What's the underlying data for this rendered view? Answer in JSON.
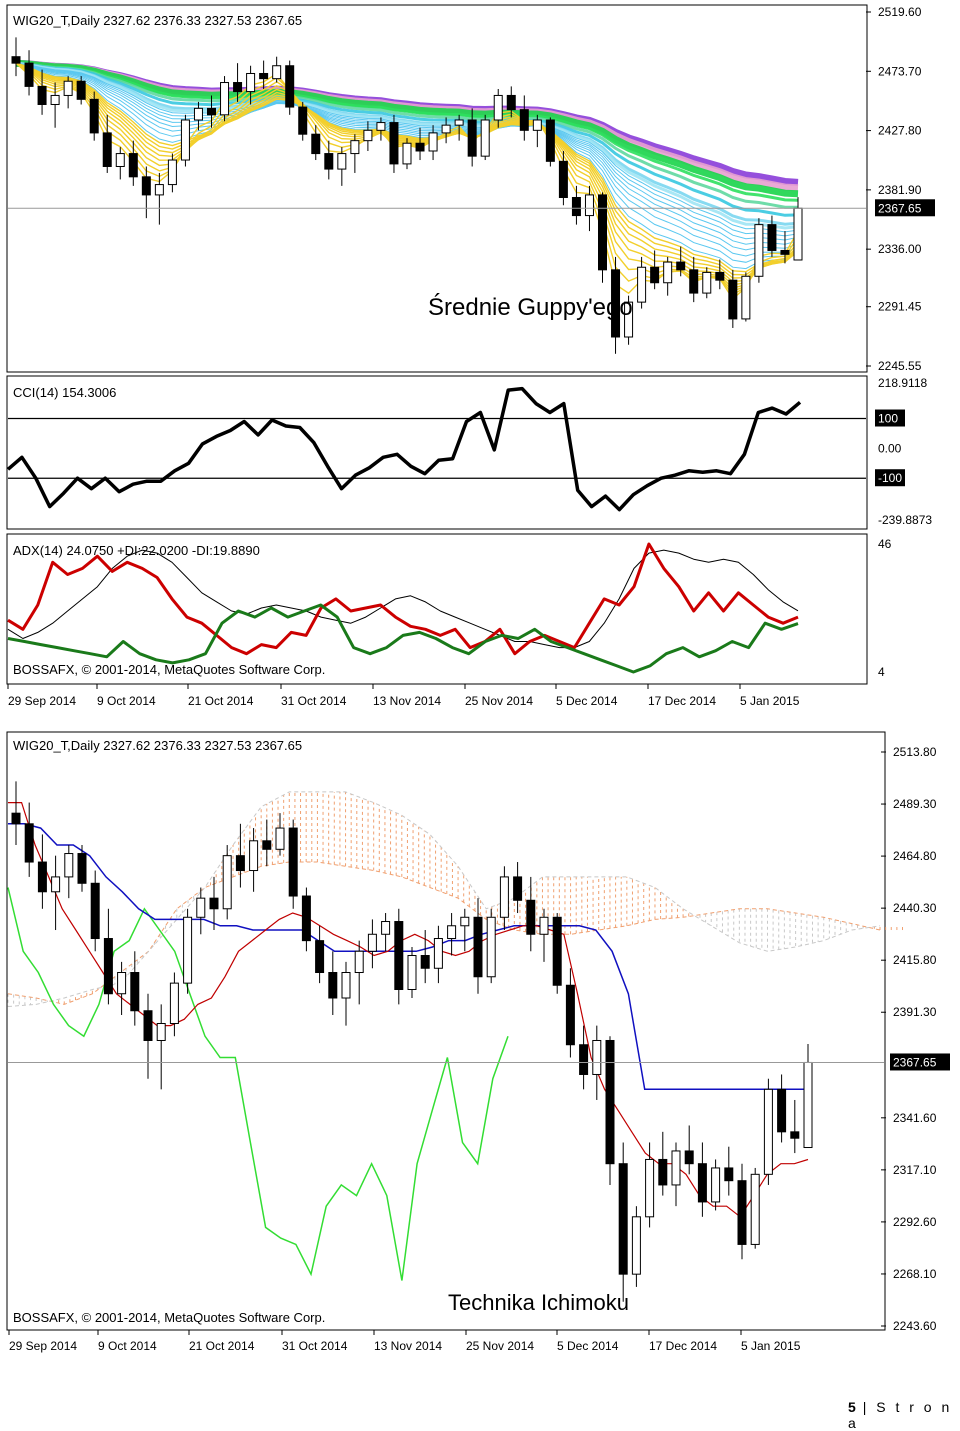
{
  "footer": {
    "page": "5",
    "sep": "|",
    "word": "S t r o n a"
  },
  "chart_data": [
    {
      "type": "candlestick",
      "panel": "guppy",
      "header": "WIG20_T,Daily  2327.62 2376.33 2327.53 2367.65",
      "annotation": "Średnie Guppy'ego",
      "ylim": [
        2245.55,
        2519.6
      ],
      "yticks": [
        "2519.60",
        "2473.70",
        "2427.80",
        "2381.90",
        "2336.00",
        "2291.45",
        "2245.55"
      ],
      "last_price": "2367.65",
      "ohlc": [
        [
          2485,
          2500,
          2470,
          2480
        ],
        [
          2480,
          2490,
          2455,
          2462
        ],
        [
          2462,
          2475,
          2440,
          2448
        ],
        [
          2448,
          2465,
          2430,
          2455
        ],
        [
          2455,
          2470,
          2445,
          2466
        ],
        [
          2466,
          2470,
          2448,
          2452
        ],
        [
          2452,
          2458,
          2420,
          2426
        ],
        [
          2426,
          2440,
          2395,
          2400
        ],
        [
          2400,
          2415,
          2390,
          2410
        ],
        [
          2410,
          2420,
          2385,
          2392
        ],
        [
          2392,
          2400,
          2360,
          2378
        ],
        [
          2378,
          2395,
          2355,
          2386
        ],
        [
          2386,
          2410,
          2380,
          2405
        ],
        [
          2405,
          2440,
          2400,
          2436
        ],
        [
          2436,
          2450,
          2428,
          2445
        ],
        [
          2445,
          2455,
          2430,
          2440
        ],
        [
          2440,
          2470,
          2435,
          2465
        ],
        [
          2465,
          2480,
          2450,
          2458
        ],
        [
          2458,
          2478,
          2448,
          2472
        ],
        [
          2472,
          2482,
          2460,
          2468
        ],
        [
          2468,
          2485,
          2465,
          2478
        ],
        [
          2478,
          2482,
          2440,
          2446
        ],
        [
          2446,
          2450,
          2420,
          2425
        ],
        [
          2425,
          2432,
          2405,
          2410
        ],
        [
          2410,
          2420,
          2390,
          2398
        ],
        [
          2398,
          2415,
          2385,
          2410
        ],
        [
          2410,
          2425,
          2395,
          2420
        ],
        [
          2420,
          2435,
          2412,
          2428
        ],
        [
          2428,
          2438,
          2420,
          2434
        ],
        [
          2434,
          2440,
          2395,
          2402
        ],
        [
          2402,
          2422,
          2398,
          2418
        ],
        [
          2418,
          2430,
          2405,
          2412
        ],
        [
          2412,
          2432,
          2405,
          2426
        ],
        [
          2426,
          2438,
          2418,
          2432
        ],
        [
          2432,
          2440,
          2420,
          2436
        ],
        [
          2436,
          2445,
          2400,
          2408
        ],
        [
          2408,
          2440,
          2405,
          2436
        ],
        [
          2436,
          2460,
          2430,
          2455
        ],
        [
          2455,
          2462,
          2438,
          2444
        ],
        [
          2444,
          2455,
          2420,
          2428
        ],
        [
          2428,
          2440,
          2415,
          2436
        ],
        [
          2436,
          2438,
          2400,
          2404
        ],
        [
          2404,
          2412,
          2370,
          2376
        ],
        [
          2376,
          2385,
          2355,
          2362
        ],
        [
          2362,
          2385,
          2350,
          2378
        ],
        [
          2378,
          2380,
          2310,
          2320
        ],
        [
          2320,
          2330,
          2255,
          2268
        ],
        [
          2268,
          2300,
          2262,
          2295
        ],
        [
          2295,
          2330,
          2290,
          2322
        ],
        [
          2322,
          2335,
          2305,
          2310
        ],
        [
          2310,
          2330,
          2300,
          2326
        ],
        [
          2326,
          2338,
          2315,
          2320
        ],
        [
          2320,
          2330,
          2295,
          2302
        ],
        [
          2302,
          2322,
          2298,
          2318
        ],
        [
          2318,
          2328,
          2305,
          2312
        ],
        [
          2312,
          2320,
          2275,
          2282
        ],
        [
          2282,
          2318,
          2280,
          2315
        ],
        [
          2315,
          2360,
          2310,
          2355
        ],
        [
          2355,
          2362,
          2330,
          2335
        ],
        [
          2335,
          2350,
          2325,
          2332
        ],
        [
          2327.62,
          2376.33,
          2327.53,
          2367.65
        ]
      ]
    },
    {
      "type": "line",
      "panel": "cci",
      "header": "CCI(14) 154.3006",
      "ylim": [
        -239.8873,
        218.9118
      ],
      "yticks": [
        "218.9118",
        "100",
        "0.00",
        "-100",
        "-239.8873"
      ],
      "levels": [
        100,
        -100
      ],
      "values": [
        -70,
        -30,
        -100,
        -195,
        -150,
        -100,
        -135,
        -100,
        -145,
        -120,
        -110,
        -110,
        -75,
        -50,
        15,
        40,
        60,
        90,
        45,
        95,
        75,
        70,
        20,
        -60,
        -135,
        -90,
        -65,
        -30,
        -20,
        -60,
        -85,
        -40,
        -35,
        90,
        120,
        -5,
        195,
        200,
        150,
        120,
        150,
        -140,
        -195,
        -160,
        -205,
        -155,
        -125,
        -100,
        -90,
        -75,
        -80,
        -75,
        -85,
        -20,
        120,
        135,
        115,
        154.3006
      ]
    },
    {
      "type": "line",
      "panel": "adx",
      "header": "ADX(14) 24.0750 +DI:22.0200 -DI:19.8890",
      "watermark": "BOSSAFX, © 2001-2014, MetaQuotes Software Corp.",
      "ylim": [
        4,
        46
      ],
      "yticks": [
        "46",
        "4"
      ],
      "series": [
        {
          "name": "ADX",
          "color": "#000000",
          "values": [
            18,
            15,
            17,
            20,
            24,
            28,
            32,
            38,
            42,
            44,
            43,
            40,
            35,
            30,
            27,
            24,
            23,
            25,
            26,
            25,
            24,
            22,
            21,
            20,
            22,
            25,
            28,
            29,
            27,
            24,
            22,
            20,
            18,
            16,
            14,
            14,
            13,
            12,
            12,
            14,
            20,
            28,
            38,
            43,
            44,
            43,
            41,
            40,
            41,
            40,
            36,
            31,
            27,
            24.075
          ]
        },
        {
          "name": "+DI",
          "color": "#cc0000",
          "values": [
            21,
            18,
            26,
            40,
            36,
            38,
            42,
            37,
            40,
            38,
            35,
            28,
            22,
            20,
            16,
            12,
            10,
            13,
            12,
            17,
            16,
            25,
            28,
            24,
            25,
            26,
            22,
            19,
            18,
            16,
            18,
            12,
            14,
            18,
            10,
            14,
            16,
            14,
            12,
            20,
            28,
            26,
            32,
            46,
            38,
            32,
            24,
            30,
            24,
            30,
            26,
            22,
            20,
            22.02
          ]
        },
        {
          "name": "-DI",
          "color": "#1a7a1a",
          "values": [
            15,
            14,
            13,
            12,
            11,
            10,
            9,
            14,
            10,
            8,
            7,
            8,
            10,
            20,
            24,
            22,
            25,
            22,
            24,
            26,
            22,
            12,
            10,
            12,
            16,
            17,
            15,
            12,
            10,
            14,
            16,
            15,
            18,
            14,
            12,
            10,
            8,
            6,
            4,
            6,
            10,
            12,
            9,
            11,
            14,
            12,
            20,
            18,
            19.889
          ]
        }
      ]
    },
    {
      "type": "candlestick",
      "panel": "ichimoku",
      "header": "WIG20_T,Daily  2327.62 2376.33 2327.53 2367.65",
      "annotation": "Technika Ichimoku",
      "watermark": "BOSSAFX, © 2001-2014, MetaQuotes Software Corp.",
      "ylim": [
        2243.6,
        2513.8
      ],
      "yticks": [
        "2513.80",
        "2489.30",
        "2464.80",
        "2440.30",
        "2415.80",
        "2391.30",
        "2367.65",
        "2341.60",
        "2317.10",
        "2292.60",
        "2268.10",
        "2243.60"
      ],
      "last_price": "2367.65",
      "xticks": [
        "29 Sep 2014",
        "9 Oct 2014",
        "21 Oct 2014",
        "31 Oct 2014",
        "13 Nov 2014",
        "25 Nov 2014",
        "5 Dec 2014",
        "17 Dec 2014",
        "5 Jan 2015"
      ],
      "lines": {
        "tenkan": [
          2490,
          2490,
          2470,
          2455,
          2440,
          2430,
          2420,
          2410,
          2400,
          2395,
          2390,
          2385,
          2385,
          2388,
          2395,
          2398,
          2408,
          2420,
          2425,
          2430,
          2435,
          2438,
          2436,
          2432,
          2428,
          2425,
          2422,
          2418,
          2420,
          2425,
          2428,
          2425,
          2420,
          2418,
          2420,
          2425,
          2428,
          2430,
          2432,
          2432,
          2430,
          2428,
          2400,
          2370,
          2355,
          2345,
          2335,
          2325,
          2320,
          2320,
          2315,
          2305,
          2300,
          2300,
          2295,
          2305,
          2315,
          2320,
          2320,
          2322
        ],
        "kijun": [
          2480,
          2480,
          2478,
          2470,
          2470,
          2465,
          2455,
          2448,
          2440,
          2435,
          2435,
          2435,
          2435,
          2432,
          2432,
          2430,
          2430,
          2430,
          2430,
          2425,
          2420,
          2420,
          2420,
          2420,
          2420,
          2420,
          2422,
          2425,
          2425,
          2428,
          2430,
          2432,
          2432,
          2432,
          2432,
          2432,
          2430,
          2420,
          2400,
          2355,
          2355,
          2355,
          2355,
          2355,
          2355,
          2355,
          2355,
          2355,
          2355,
          2355
        ],
        "chikou": [
          2450,
          2420,
          2410,
          2395,
          2385,
          2380,
          2395,
          2420,
          2425,
          2440,
          2430,
          2420,
          2400,
          2380,
          2370,
          2370,
          2330,
          2290,
          2285,
          2282,
          2268,
          2300,
          2310,
          2305,
          2320,
          2305,
          2265,
          2320,
          2345,
          2370,
          2330,
          2320,
          2360,
          2380
        ]
      },
      "cloud": {
        "span_a": [
          2400,
          2398,
          2395,
          2400,
          2410,
          2420,
          2440,
          2450,
          2455,
          2460,
          2462,
          2462,
          2460,
          2458,
          2455,
          2450,
          2445,
          2435,
          2430,
          2428,
          2428,
          2430,
          2432,
          2435,
          2436,
          2438,
          2440,
          2440,
          2438,
          2436,
          2433,
          2430
        ],
        "span_b": [
          2394,
          2395,
          2398,
          2402,
          2405,
          2420,
          2435,
          2450,
          2470,
          2488,
          2495,
          2495,
          2495,
          2490,
          2484,
          2475,
          2460,
          2440,
          2445,
          2455,
          2455,
          2455,
          2455,
          2450,
          2440,
          2432,
          2424,
          2420,
          2422,
          2425,
          2430,
          2432
        ]
      }
    }
  ]
}
